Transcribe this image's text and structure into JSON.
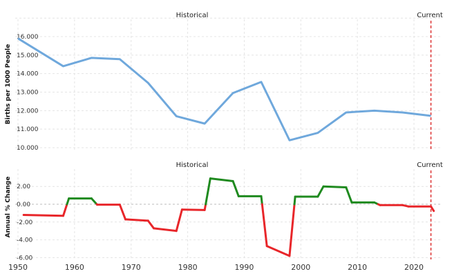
{
  "chart_data": [
    {
      "type": "line",
      "ylabel": "Births per 1000 People",
      "annotations": [
        "Historical",
        "Current"
      ],
      "ylim": [
        10,
        17
      ],
      "xlim": [
        1950,
        2025
      ],
      "yticks": [
        "10.000",
        "11.000",
        "12.000",
        "13.000",
        "14.000",
        "15.000",
        "16.000"
      ],
      "grid": true,
      "color": "#6fa8dc",
      "x": [
        1950,
        1958,
        1963,
        1968,
        1973,
        1978,
        1983,
        1988,
        1993,
        1998,
        2003,
        2008,
        2013,
        2018,
        2023
      ],
      "values": [
        15.9,
        14.4,
        14.85,
        14.78,
        13.5,
        11.7,
        11.3,
        12.95,
        13.55,
        10.4,
        10.8,
        11.9,
        12.0,
        11.9,
        11.72
      ]
    },
    {
      "type": "line",
      "ylabel": "Annual % Change",
      "annotations": [
        "Historical",
        "Current"
      ],
      "ylim": [
        -6.3,
        3.5
      ],
      "yticks": [
        "-6.00",
        "-4.00",
        "-2.00",
        "0.00",
        "2.00"
      ],
      "xticks": [
        "1950",
        "1960",
        "1970",
        "1980",
        "1990",
        "2000",
        "2010",
        "2020"
      ],
      "grid": true,
      "positive_color": "#1f8a1f",
      "negative_color": "#e8262a",
      "x": [
        1951,
        1958,
        1959,
        1963,
        1964,
        1968,
        1969,
        1973,
        1974,
        1978,
        1979,
        1983,
        1984,
        1988,
        1989,
        1993,
        1994,
        1998,
        1999,
        2003,
        2004,
        2008,
        2009,
        2013,
        2014,
        2018,
        2019,
        2023,
        2023.5
      ],
      "values": [
        -1.2,
        -1.3,
        0.65,
        0.65,
        -0.05,
        -0.05,
        -1.7,
        -1.85,
        -2.7,
        -3.0,
        -0.6,
        -0.65,
        2.9,
        2.6,
        0.9,
        0.9,
        -4.7,
        -5.8,
        0.85,
        0.85,
        2.0,
        1.9,
        0.2,
        0.2,
        -0.1,
        -0.1,
        -0.25,
        -0.25,
        -0.75
      ]
    }
  ],
  "current_year": 2023
}
